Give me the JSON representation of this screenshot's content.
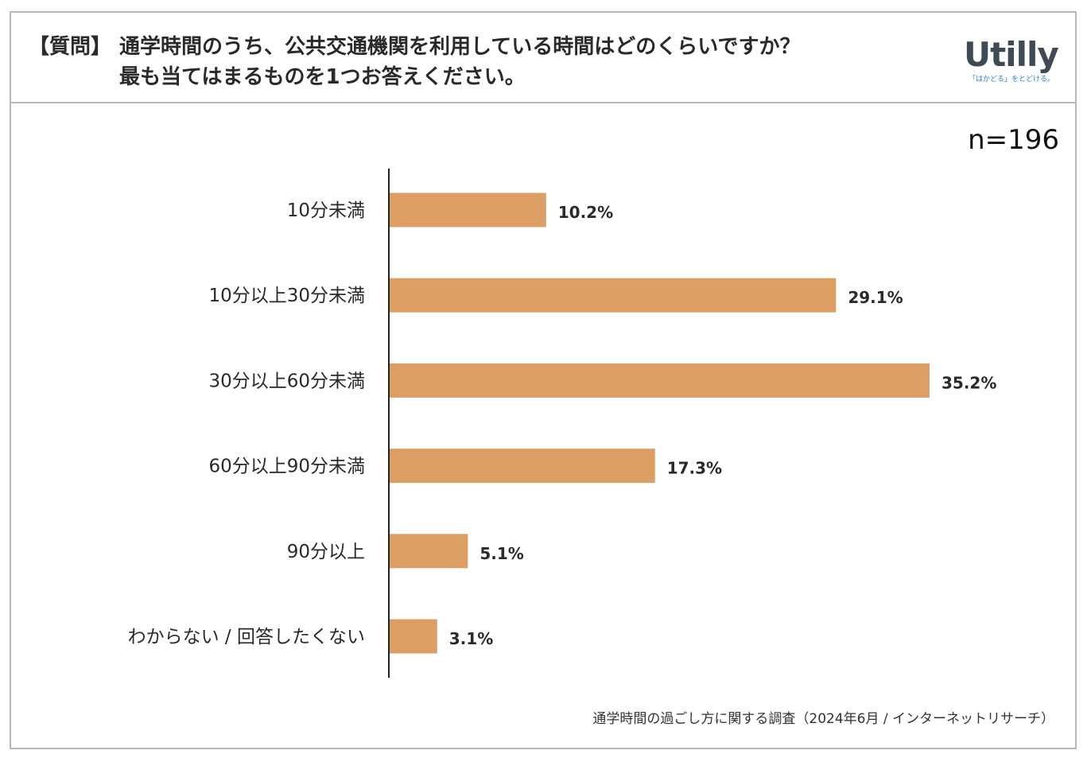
{
  "header": {
    "bracket": "【質問】",
    "question_line1": "通学時間のうち、公共交通機関を利用している時間はどのくらいですか？",
    "question_line2": "最も当てはまるものを1つお答えください。"
  },
  "logo": {
    "word": "Utilly",
    "tagline": "「はかどる」をとどける。"
  },
  "sample": "n=196",
  "source": "通学時間の過ごし方に関する調査（2024年6月 / インターネットリサーチ）",
  "colors": {
    "bar": "#dd9e63",
    "axis": "#222222"
  },
  "chart_data": {
    "type": "bar",
    "orientation": "horizontal",
    "categories": [
      "10分未満",
      "10分以上30分未満",
      "30分以上60分未満",
      "60分以上90分未満",
      "90分以上",
      "わからない / 回答したくない"
    ],
    "values": [
      10.2,
      29.1,
      35.2,
      17.3,
      5.1,
      3.1
    ],
    "value_labels": [
      "10.2%",
      "29.1%",
      "35.2%",
      "17.3%",
      "5.1%",
      "3.1%"
    ],
    "unit": "%",
    "xlim": [
      0,
      40
    ],
    "grid": false,
    "legend": "none"
  }
}
